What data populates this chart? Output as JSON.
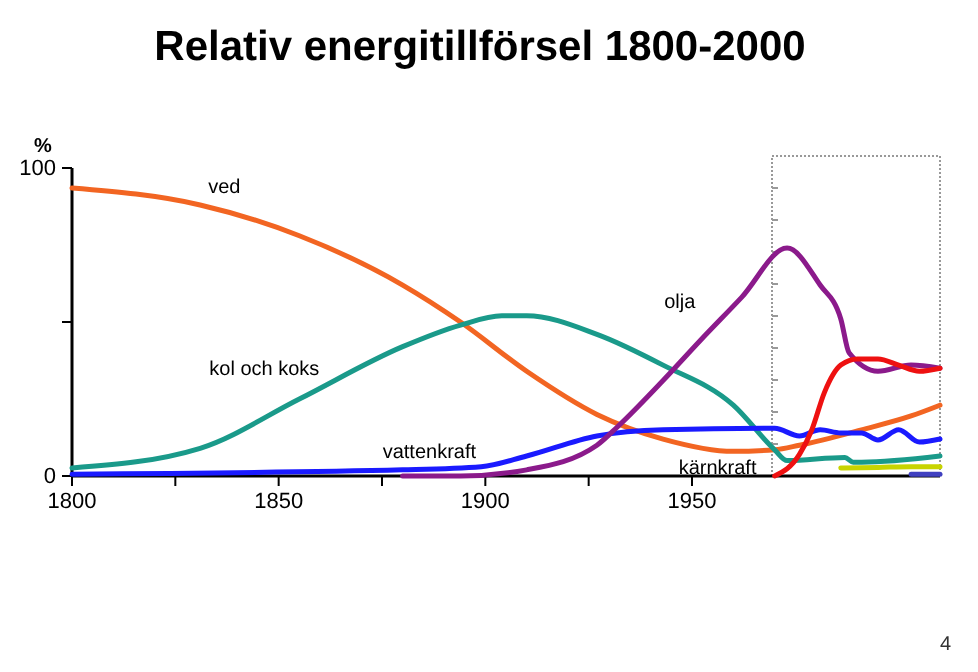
{
  "chart_data": {
    "type": "line",
    "title": "Relativ energitillförsel 1800-2000",
    "ylabel": "%",
    "annotations": [
      "4"
    ],
    "xlim": [
      1800,
      2010
    ],
    "ylim": [
      0,
      100
    ],
    "xticks": [
      1800,
      {
        "value": 1825,
        "label": null
      },
      1850,
      {
        "value": 1875,
        "label": null
      },
      1900,
      {
        "value": 1925,
        "label": null
      },
      1950
    ],
    "yticks": [
      0,
      {
        "value": 50,
        "label": null
      },
      100
    ],
    "grid": false,
    "legend": false,
    "marker": "none",
    "line_style": "solid",
    "series": [
      {
        "name": "ved",
        "color": "#f26522",
        "x": [
          1800,
          1831,
          1855,
          1880,
          1894,
          1910,
          1927,
          1943,
          1960,
          1970,
          1976,
          1991,
          2003,
          2010
        ],
        "values": [
          93.5,
          88,
          78,
          62,
          50,
          34,
          20,
          12,
          8,
          8.5,
          10,
          15,
          19.5,
          23
        ]
      },
      {
        "name": "kol och koks",
        "color": "#1a9a8a",
        "x": [
          1800,
          1831,
          1855,
          1880,
          1894,
          1904,
          1910,
          1927,
          1943,
          1960,
          1970,
          1973,
          1987,
          1989,
          1991,
          2010
        ],
        "values": [
          2.6,
          9,
          25,
          42,
          49,
          52,
          52,
          46,
          36,
          23,
          8.5,
          5,
          6,
          4.5,
          4.5,
          6.5
        ]
      },
      {
        "name": "vattenkraft",
        "color": "#1a1aff",
        "x": [
          1800,
          1880,
          1899,
          1910,
          1927,
          1943,
          1970,
          1976,
          1981,
          1986,
          1991,
          1995,
          2000,
          2005,
          2010
        ],
        "values": [
          0.6,
          2,
          3,
          6.5,
          13,
          15,
          15.5,
          13,
          15,
          14,
          14,
          11.7,
          15,
          11,
          12
        ]
      },
      {
        "name": "olja",
        "color": "#8b1a8b",
        "x": [
          1880,
          1894,
          1910,
          1927,
          1932,
          1943,
          1952,
          1962,
          1973,
          1981,
          1986,
          1988,
          1995,
          2003,
          2010
        ],
        "values": [
          0,
          0,
          2,
          10,
          16,
          31,
          44,
          58,
          74,
          62,
          51,
          40,
          34,
          36,
          35
        ]
      },
      {
        "name": "kärnkraft",
        "color": "#ee1111",
        "x": [
          1970,
          1976,
          1979,
          1982,
          1986,
          1990,
          1995,
          2000,
          2005,
          2010
        ],
        "values": [
          0,
          7,
          15,
          27,
          36,
          38,
          38,
          36,
          34,
          35
        ]
      },
      {
        "color": "#c8d400",
        "x": [
          1986,
          1995,
          2003,
          2010
        ],
        "values": [
          2.6,
          2.8,
          3,
          3
        ]
      },
      {
        "color": "#4040c0",
        "x": [
          2003,
          2010
        ],
        "values": [
          0.6,
          0.6
        ]
      }
    ]
  }
}
